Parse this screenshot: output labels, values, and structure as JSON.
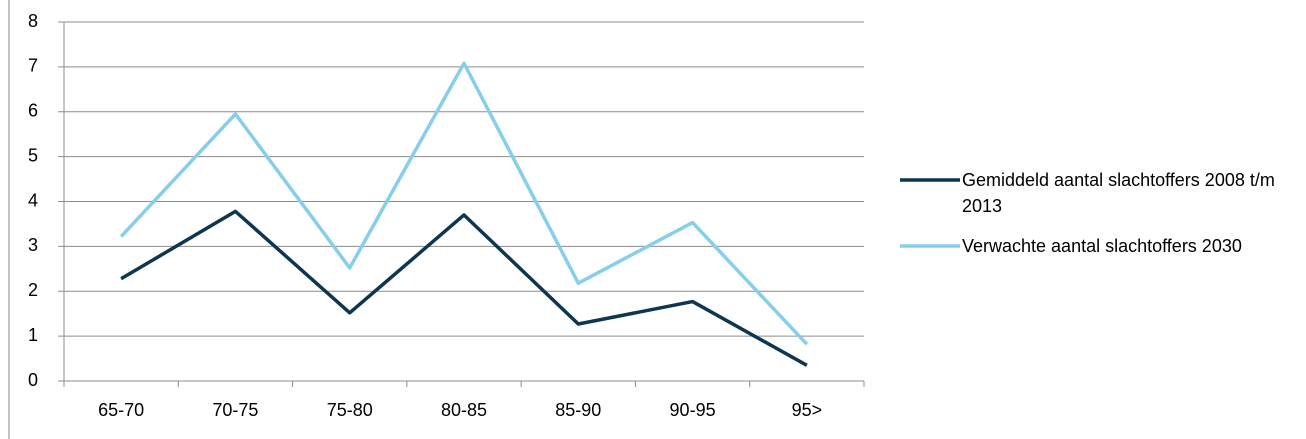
{
  "chart_data": {
    "type": "line",
    "categories": [
      "65-70",
      "70-75",
      "75-80",
      "80-85",
      "85-90",
      "90-95",
      "95>"
    ],
    "series": [
      {
        "name": "Gemiddeld aantal slachtoffers 2008 t/m 2013",
        "color": "#0e3650",
        "values": [
          2.28,
          3.78,
          1.52,
          3.7,
          1.27,
          1.77,
          0.35
        ]
      },
      {
        "name": "Verwachte aantal slachtoffers 2030",
        "color": "#87ceeb",
        "values": [
          3.22,
          5.95,
          2.52,
          7.08,
          2.18,
          3.53,
          0.82
        ]
      }
    ],
    "ylim": [
      0,
      8
    ],
    "yticks": [
      0,
      1,
      2,
      3,
      4,
      5,
      6,
      7,
      8
    ],
    "grid": true,
    "legend": "right"
  }
}
